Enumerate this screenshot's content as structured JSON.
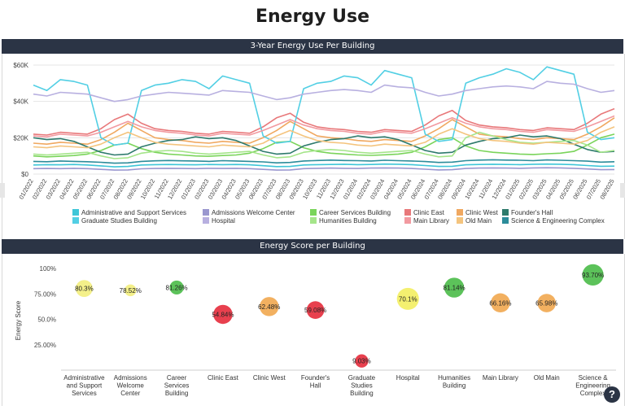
{
  "page": {
    "title": "Energy Use"
  },
  "line_section": {
    "title": "3-Year Energy Use Per Building"
  },
  "bubble_section": {
    "title": "Energy Score per Building"
  },
  "help": {
    "glyph": "?"
  },
  "chart_data": [
    {
      "type": "line",
      "title": "3-Year Energy Use Per Building",
      "ylim": [
        0,
        60000
      ],
      "y_ticks": [
        "$0",
        "$20K",
        "$40K",
        "$60K"
      ],
      "y_tick_values": [
        0,
        20000,
        40000,
        60000
      ],
      "grid": true,
      "legend_position": "bottom",
      "x": [
        "01/2022",
        "02/2022",
        "03/2022",
        "04/2022",
        "05/2022",
        "06/2022",
        "07/2022",
        "08/2022",
        "09/2022",
        "10/2022",
        "11/2022",
        "12/2022",
        "01/2023",
        "02/2023",
        "03/2023",
        "04/2023",
        "05/2023",
        "06/2023",
        "07/2023",
        "08/2023",
        "09/2023",
        "10/2023",
        "11/2023",
        "12/2023",
        "01/2024",
        "02/2024",
        "03/2024",
        "04/2024",
        "05/2024",
        "06/2024",
        "07/2024",
        "08/2024",
        "09/2024",
        "10/2024",
        "11/2024",
        "12/2024",
        "01/2025",
        "02/2025",
        "03/2025",
        "04/2025",
        "05/2025",
        "06/2025",
        "07/2025",
        "08/2025"
      ],
      "x_labels_shown": [
        "01/2022",
        "02/2022",
        "03/2022",
        "04/2022",
        "05/2022",
        "06/2022",
        "07/2022",
        "08/2022",
        "09/2022",
        "10/2022",
        "11/2022",
        "12/2022",
        "01/2023",
        "02/2023",
        "03/2023",
        "04/2023",
        "05/2023",
        "06/2023",
        "07/2023",
        "08/2023",
        "09/2023",
        "10/2023",
        "11/2023",
        "12/2023",
        "01/2024",
        "02/2024",
        "03/2024",
        "04/2024",
        "05/2024",
        "06/2024",
        "07/2024",
        "08/2024",
        "09/2024",
        "10/2024",
        "11/2024",
        "12/2024",
        "01/2025",
        "02/2025",
        "03/2025",
        "04/2025",
        "05/2025",
        "06/2025",
        "07/2025",
        "08/2025"
      ],
      "series": [
        {
          "name": "Administrative and Support Services",
          "color": "#3ec6d8",
          "values": [
            5000,
            5200,
            5100,
            5300,
            5000,
            4500,
            4000,
            4200,
            5000,
            5200,
            5300,
            5200,
            5100,
            5300,
            5200,
            5300,
            5100,
            4600,
            4100,
            4200,
            5000,
            5200,
            5300,
            5400,
            5200,
            5300,
            5500,
            5400,
            5200,
            4700,
            4200,
            4300,
            5100,
            5300,
            5400,
            5300,
            5200,
            5400,
            5500,
            5400,
            5200,
            4700,
            4300,
            4400
          ]
        },
        {
          "name": "Admissions Welcome Center",
          "color": "#9a97cf",
          "values": [
            3000,
            3100,
            3000,
            3200,
            3000,
            2600,
            2200,
            2300,
            2900,
            3100,
            3200,
            3100,
            3000,
            3200,
            3100,
            3200,
            3000,
            2600,
            2200,
            2300,
            3000,
            3200,
            3300,
            3200,
            3100,
            3300,
            3400,
            3300,
            3100,
            2700,
            2300,
            2400,
            3100,
            3300,
            3400,
            3300,
            3200,
            3400,
            3500,
            3400,
            3200,
            2800,
            2400,
            2500
          ]
        },
        {
          "name": "Career Services Building",
          "color": "#7ad45a",
          "values": [
            10000,
            9500,
            9800,
            10200,
            11000,
            13000,
            16000,
            17000,
            14000,
            12000,
            11000,
            10500,
            10000,
            9800,
            10200,
            10500,
            11500,
            14000,
            17500,
            18000,
            14500,
            12500,
            11500,
            11000,
            10500,
            10300,
            10600,
            11000,
            12000,
            15000,
            19000,
            20000,
            15500,
            13000,
            12000,
            11500,
            11000,
            10800,
            11200,
            11500,
            12500,
            16000,
            20000,
            22000
          ]
        },
        {
          "name": "Clinic East",
          "color": "#e8787a",
          "values": [
            22000,
            21500,
            23000,
            22500,
            22000,
            25000,
            30000,
            33000,
            28000,
            25000,
            24000,
            23500,
            22500,
            22000,
            23500,
            23000,
            22500,
            26000,
            31000,
            33500,
            28500,
            26000,
            25000,
            24500,
            23500,
            23000,
            24500,
            24000,
            23500,
            27000,
            32000,
            35000,
            29500,
            27000,
            26000,
            25500,
            24500,
            24000,
            25500,
            25000,
            24500,
            28000,
            33000,
            36000
          ]
        },
        {
          "name": "Clinic West",
          "color": "#f0a860",
          "values": [
            17000,
            16500,
            17500,
            17000,
            16500,
            19000,
            23000,
            28000,
            24000,
            20000,
            19000,
            18500,
            17500,
            17000,
            18000,
            17500,
            17000,
            20000,
            24000,
            29000,
            25000,
            21000,
            20000,
            19500,
            18500,
            18000,
            19000,
            18500,
            18000,
            21000,
            25000,
            30000,
            26000,
            22000,
            21000,
            20500,
            19500,
            19000,
            20000,
            19500,
            19000,
            22000,
            26000,
            31000
          ]
        },
        {
          "name": "Founder's Hall",
          "color": "#2e7a6c",
          "values": [
            20000,
            19000,
            19500,
            18000,
            15000,
            12000,
            10500,
            11000,
            15000,
            17000,
            18500,
            19000,
            20500,
            19500,
            20000,
            18500,
            15500,
            12500,
            11000,
            11500,
            15500,
            17500,
            19000,
            19500,
            21000,
            20000,
            20500,
            19000,
            16000,
            13000,
            11500,
            12000,
            16000,
            18000,
            19500,
            20000,
            21500,
            20500,
            21000,
            19500,
            16500,
            13500,
            12000,
            12500
          ]
        },
        {
          "name": "Graduate Studies Building",
          "color": "#52cfe4",
          "values": [
            49000,
            46000,
            52000,
            51000,
            49000,
            20000,
            16000,
            17000,
            46000,
            49000,
            50000,
            52000,
            51000,
            47000,
            54000,
            52000,
            50000,
            21000,
            17000,
            18000,
            47000,
            50000,
            51000,
            54000,
            53000,
            49000,
            57000,
            55000,
            53000,
            22000,
            18000,
            19000,
            50000,
            53000,
            55000,
            58000,
            56000,
            52000,
            59000,
            57000,
            55000,
            23000,
            19000,
            20000
          ]
        },
        {
          "name": "Hospital",
          "color": "#b8b0e0",
          "values": [
            44000,
            43000,
            45000,
            44500,
            44000,
            42000,
            40000,
            41000,
            43000,
            44000,
            45000,
            44500,
            44000,
            43500,
            46000,
            45500,
            45000,
            43000,
            41000,
            42000,
            44000,
            45000,
            46000,
            46500,
            46000,
            45000,
            49000,
            48000,
            47500,
            45000,
            43000,
            44000,
            46000,
            47000,
            48000,
            48500,
            48000,
            47000,
            51000,
            50000,
            49500,
            47000,
            45000,
            46000
          ]
        },
        {
          "name": "Humanities Building",
          "color": "#a5e58a",
          "values": [
            11000,
            10500,
            11000,
            11500,
            12000,
            10000,
            8500,
            9000,
            11500,
            12500,
            13000,
            12500,
            11500,
            11000,
            11500,
            12000,
            12500,
            10500,
            9000,
            9500,
            12000,
            13000,
            13500,
            13000,
            12000,
            11500,
            12000,
            12500,
            13000,
            11000,
            9500,
            10000,
            20000,
            23000,
            21000,
            19000,
            17500,
            17000,
            17500,
            18000,
            18500,
            16000,
            12000,
            13000
          ]
        },
        {
          "name": "Main Library",
          "color": "#f29aa0",
          "values": [
            21000,
            20500,
            22000,
            21500,
            21000,
            23000,
            26000,
            29000,
            26000,
            24000,
            23000,
            22500,
            21500,
            21000,
            22500,
            22000,
            21500,
            24000,
            27000,
            30000,
            27000,
            25000,
            24000,
            23500,
            22500,
            22000,
            23500,
            23000,
            22500,
            25000,
            28000,
            31000,
            28000,
            26000,
            25000,
            24500,
            23500,
            23000,
            24500,
            24000,
            23500,
            26000,
            29000,
            32000
          ]
        },
        {
          "name": "Old Main",
          "color": "#f4c47e",
          "values": [
            15000,
            14500,
            15500,
            15000,
            14500,
            16500,
            20000,
            23000,
            20000,
            17500,
            16500,
            16000,
            15500,
            15000,
            16000,
            15500,
            15000,
            17000,
            21000,
            24000,
            21000,
            18500,
            17500,
            17000,
            16000,
            15500,
            16500,
            16000,
            15500,
            17500,
            22000,
            25000,
            22000,
            19500,
            18500,
            18000,
            17000,
            16500,
            17500,
            17000,
            16500,
            18500,
            23000,
            26000
          ]
        },
        {
          "name": "Science & Engineering Complex",
          "color": "#2c8c9a",
          "values": [
            7000,
            6800,
            7200,
            7000,
            6800,
            6500,
            6000,
            6200,
            7000,
            7300,
            7500,
            7300,
            7200,
            7000,
            7400,
            7200,
            7000,
            6700,
            6200,
            6400,
            7200,
            7500,
            7700,
            7500,
            7400,
            7200,
            7600,
            7400,
            7200,
            6900,
            6400,
            6600,
            7400,
            7700,
            7900,
            7700,
            7600,
            7400,
            7800,
            7600,
            7400,
            7100,
            6600,
            6800
          ]
        }
      ]
    },
    {
      "type": "scatter",
      "title": "Energy Score per Building",
      "ylabel": "Energy Score",
      "ylim": [
        0,
        100
      ],
      "y_ticks": [
        "25.00%",
        "50.0%",
        "75.00%",
        "100%"
      ],
      "y_tick_values": [
        25,
        50,
        75,
        100
      ],
      "categories": [
        "Administrative and Support Services",
        "Admissions Welcome Center",
        "Career Services Building",
        "Clinic East",
        "Clinic West",
        "Founder's Hall",
        "Graduate Studies Building",
        "Hospital",
        "Humanities Building",
        "Main Library",
        "Old Main",
        "Science & Engineering Complex"
      ],
      "values": [
        80.3,
        78.52,
        81.26,
        54.84,
        62.48,
        59.08,
        9.03,
        70.1,
        81.14,
        66.16,
        65.98,
        93.7
      ],
      "value_labels": [
        "80.3%",
        "78.52%",
        "81.26%",
        "54.84%",
        "62.48%",
        "59.08%",
        "9.03%",
        "70.1%",
        "81.14%",
        "66.16%",
        "65.98%",
        "93.70%"
      ],
      "sizes": [
        0.6,
        0.25,
        0.4,
        0.75,
        0.75,
        0.65,
        0.35,
        0.95,
        0.8,
        0.75,
        0.7,
        0.9
      ],
      "colors": [
        "#f4f08a",
        "#f4f08a",
        "#5cc25a",
        "#e8404e",
        "#f2b060",
        "#e8404e",
        "#e8404e",
        "#f4f070",
        "#5cc25a",
        "#f2b060",
        "#f2b060",
        "#5cc25a"
      ]
    }
  ]
}
